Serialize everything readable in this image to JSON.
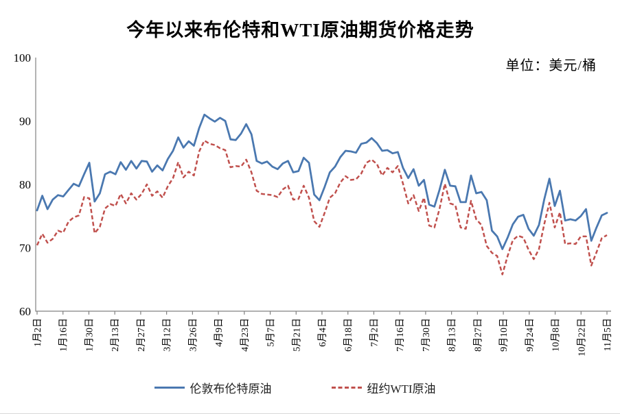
{
  "page": {
    "title": "今年以来布伦特和WTI原油期货价格走势",
    "unit_label": "单位：美元/桶"
  },
  "legend": {
    "brent": "伦敦布伦特原油",
    "wti": "纽约WTI原油"
  },
  "chart_data": {
    "type": "line",
    "title": "今年以来布伦特和WTI原油期货价格走势",
    "unit": "美元/桶",
    "xlabel": "",
    "ylabel": "",
    "ylim": [
      60,
      100
    ],
    "y_ticks": [
      60,
      70,
      80,
      90,
      100
    ],
    "grid": false,
    "legend_position": "bottom",
    "x_tick_labels": [
      "1月2日",
      "1月16日",
      "1月30日",
      "2月13日",
      "2月27日",
      "3月12日",
      "3月26日",
      "4月9日",
      "4月23日",
      "5月7日",
      "5月21日",
      "6月4日",
      "6月18日",
      "7月2日",
      "7月16日",
      "7月30日",
      "8月13日",
      "8月27日",
      "9月10日",
      "9月24日",
      "10月8日",
      "10月22日",
      "11月5日"
    ],
    "colors": {
      "brent": "#4a78b0",
      "wti": "#c0504d",
      "axis": "#808080",
      "text": "#000000"
    },
    "series": [
      {
        "name": "伦敦布伦特原油",
        "style": "solid",
        "color": "#4a78b0",
        "values": [
          75.9,
          78.2,
          76.1,
          77.6,
          78.3,
          78.1,
          79.1,
          80.1,
          79.7,
          81.6,
          83.4,
          77.3,
          78.6,
          81.6,
          82.0,
          81.6,
          83.5,
          82.3,
          83.7,
          82.5,
          83.7,
          83.6,
          82.0,
          83.0,
          82.2,
          84.0,
          85.3,
          87.4,
          85.8,
          86.8,
          86.1,
          88.9,
          91.0,
          90.4,
          89.9,
          90.5,
          90.0,
          87.1,
          87.0,
          88.0,
          89.5,
          87.9,
          83.7,
          83.3,
          83.6,
          82.8,
          82.4,
          83.3,
          83.7,
          81.9,
          82.1,
          84.2,
          83.4,
          78.4,
          77.5,
          79.6,
          81.9,
          82.8,
          84.3,
          85.3,
          85.2,
          85.0,
          86.4,
          86.6,
          87.3,
          86.5,
          85.3,
          85.4,
          84.9,
          85.1,
          82.6,
          81.0,
          82.4,
          79.8,
          80.7,
          76.8,
          76.5,
          79.2,
          82.3,
          79.8,
          79.7,
          77.2,
          77.2,
          81.4,
          78.6,
          78.8,
          77.5,
          72.7,
          71.8,
          69.8,
          71.6,
          73.7,
          74.9,
          75.2,
          73.0,
          71.9,
          73.6,
          77.6,
          80.9,
          76.6,
          79.0,
          74.3,
          74.5,
          74.3,
          75.0,
          76.1,
          71.1,
          73.2,
          75.1,
          75.5
        ]
      },
      {
        "name": "纽约WTI原油",
        "style": "dashed",
        "color": "#c0504d",
        "values": [
          70.4,
          72.2,
          70.8,
          71.4,
          72.7,
          72.4,
          74.1,
          74.8,
          75.1,
          78.0,
          77.8,
          72.3,
          73.3,
          76.2,
          76.9,
          76.6,
          78.5,
          77.0,
          78.6,
          77.6,
          78.5,
          80.0,
          78.2,
          78.9,
          77.9,
          79.7,
          81.0,
          83.5,
          81.1,
          82.0,
          81.4,
          85.2,
          86.9,
          86.4,
          86.2,
          85.7,
          85.4,
          82.7,
          82.9,
          82.8,
          83.9,
          81.9,
          79.0,
          78.5,
          78.4,
          78.3,
          78.0,
          79.2,
          79.8,
          77.6,
          77.7,
          79.8,
          77.9,
          74.2,
          73.3,
          75.5,
          77.9,
          78.6,
          80.3,
          81.3,
          80.7,
          80.8,
          81.7,
          83.4,
          83.9,
          83.2,
          81.4,
          82.6,
          81.9,
          82.9,
          80.1,
          77.0,
          78.3,
          75.8,
          77.9,
          73.5,
          73.2,
          76.2,
          80.1,
          77.0,
          76.7,
          73.2,
          73.0,
          77.4,
          74.5,
          73.6,
          70.3,
          69.2,
          68.7,
          65.8,
          68.7,
          71.2,
          71.9,
          71.6,
          69.7,
          68.2,
          69.8,
          73.7,
          77.1,
          73.2,
          75.6,
          70.6,
          70.7,
          70.6,
          71.8,
          71.8,
          67.2,
          69.3,
          71.5,
          72.0
        ]
      }
    ]
  }
}
